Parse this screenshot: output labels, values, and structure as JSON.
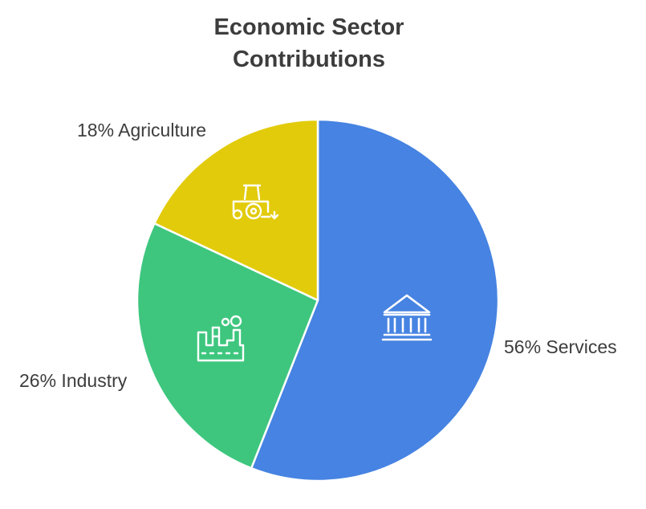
{
  "title_lines": [
    "Economic Sector",
    "Contributions"
  ],
  "colors": {
    "services": "#4683e2",
    "industry": "#3ec67e",
    "agriculture": "#e2cb0b",
    "text": "#3d3d3d",
    "icon": "#ffffff"
  },
  "chart_data": {
    "type": "pie",
    "title": "Economic Sector Contributions",
    "slices": [
      {
        "label": "Services",
        "value": 56,
        "display": "56% Services",
        "color": "#4683e2",
        "icon": "bank-icon"
      },
      {
        "label": "Industry",
        "value": 26,
        "display": "26% Industry",
        "color": "#3ec67e",
        "icon": "factory-icon"
      },
      {
        "label": "Agriculture",
        "value": 18,
        "display": "18% Agriculture",
        "color": "#e2cb0b",
        "icon": "tractor-icon"
      }
    ],
    "start": "12 o'clock",
    "direction": "clockwise"
  }
}
